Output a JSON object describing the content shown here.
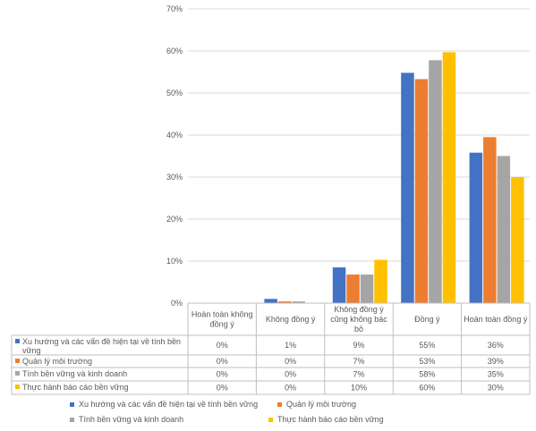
{
  "chart_data": {
    "type": "bar",
    "title": "",
    "xlabel": "",
    "ylabel": "",
    "ylim": [
      0,
      0.7
    ],
    "y_ticks": [
      "0%",
      "10%",
      "20%",
      "30%",
      "40%",
      "50%",
      "60%",
      "70%"
    ],
    "grid": true,
    "legend_position": "bottom",
    "categories": [
      "Hoàn toàn không đồng ý",
      "Không đồng ý",
      "Không đồng ý cũng không bác bỏ",
      "Đồng ý",
      "Hoàn toàn đồng ý"
    ],
    "category_lines": [
      [
        "Hoàn toàn không",
        "đồng ý"
      ],
      [
        "Không đồng ý"
      ],
      [
        "Không đồng ý",
        "cũng không bác",
        "bỏ"
      ],
      [
        "Đồng ý"
      ],
      [
        "Hoàn toàn đồng ý"
      ]
    ],
    "series": [
      {
        "name": "Xu hướng và các vấn đề hiện tại về tính bền vững",
        "label_lines": [
          "Xu hướng và các vấn đề hiện tại về tính bền",
          "vững"
        ],
        "color": "#4472C4",
        "values": [
          0,
          0.01,
          0.085,
          0.548,
          0.358
        ],
        "table_values": [
          "0%",
          "1%",
          "9%",
          "55%",
          "36%"
        ]
      },
      {
        "name": "Quản lý môi trường",
        "label_lines": [
          "Quản lý môi trường"
        ],
        "color": "#ED7D31",
        "values": [
          0,
          0.004,
          0.068,
          0.533,
          0.395
        ],
        "table_values": [
          "0%",
          "0%",
          "7%",
          "53%",
          "39%"
        ]
      },
      {
        "name": "Tính bền vững và kinh doanh",
        "label_lines": [
          "Tính bền vững và kinh doanh"
        ],
        "color": "#A5A5A5",
        "values": [
          0,
          0.004,
          0.068,
          0.578,
          0.35
        ],
        "table_values": [
          "0%",
          "0%",
          "7%",
          "58%",
          "35%"
        ]
      },
      {
        "name": "Thực hành báo cáo bền vững",
        "label_lines": [
          "Thực hành báo cáo bền vững"
        ],
        "color": "#FFC000",
        "values": [
          0,
          0,
          0.103,
          0.597,
          0.3
        ],
        "table_values": [
          "0%",
          "0%",
          "10%",
          "60%",
          "30%"
        ]
      }
    ]
  }
}
